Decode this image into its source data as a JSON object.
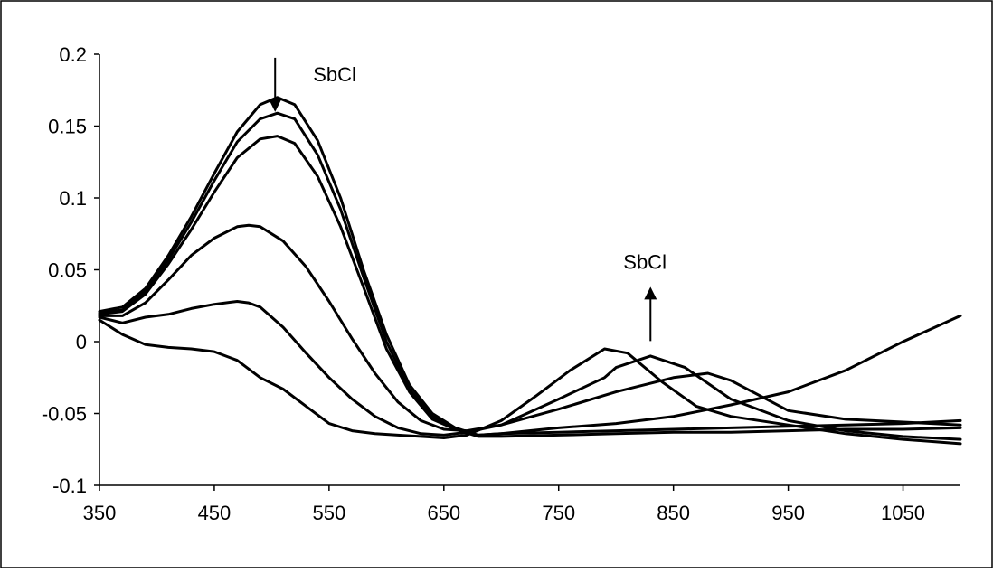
{
  "chart_data": {
    "type": "line",
    "title": "",
    "xlabel": "",
    "ylabel": "",
    "xlim": [
      350,
      1100
    ],
    "ylim": [
      -0.1,
      0.2
    ],
    "x_ticks": [
      350,
      450,
      550,
      650,
      750,
      850,
      950,
      1050
    ],
    "y_ticks": [
      0.2,
      0.15,
      0.1,
      0.05,
      0,
      -0.05,
      -0.1
    ],
    "x_tick_labels": [
      "350",
      "450",
      "550",
      "650",
      "750",
      "850",
      "950",
      "1050"
    ],
    "y_tick_labels": [
      "0.2",
      "0.15",
      "0.1",
      "0.05",
      "0",
      "-0.05",
      "-0.1"
    ],
    "grid": false,
    "legend": "none",
    "line_color": "#000000",
    "annotations": [
      {
        "text": "SbCl",
        "arrow": "down",
        "x": 503,
        "y": 0.19
      },
      {
        "text": "SbCl",
        "arrow": "up",
        "x": 830,
        "y": 0.035
      }
    ],
    "series": [
      {
        "x": [
          350,
          370,
          390,
          410,
          430,
          450,
          470,
          490,
          505,
          520,
          540,
          560,
          580,
          600,
          620,
          640,
          660,
          680,
          700,
          750,
          800,
          850,
          900,
          950,
          1000,
          1050,
          1100
        ],
        "y": [
          0.021,
          0.024,
          0.037,
          0.06,
          0.087,
          0.117,
          0.146,
          0.165,
          0.17,
          0.165,
          0.14,
          0.1,
          0.05,
          0.005,
          -0.03,
          -0.05,
          -0.06,
          -0.065,
          -0.064,
          -0.063,
          -0.062,
          -0.061,
          -0.06,
          -0.059,
          -0.058,
          -0.057,
          -0.055
        ]
      },
      {
        "x": [
          350,
          370,
          390,
          410,
          430,
          450,
          470,
          490,
          505,
          520,
          540,
          560,
          580,
          600,
          620,
          640,
          660,
          680,
          700,
          750,
          800,
          850,
          900,
          950,
          1000,
          1050,
          1100
        ],
        "y": [
          0.02,
          0.022,
          0.035,
          0.057,
          0.083,
          0.112,
          0.139,
          0.155,
          0.159,
          0.155,
          0.13,
          0.092,
          0.045,
          0.0,
          -0.033,
          -0.052,
          -0.061,
          -0.066,
          -0.066,
          -0.065,
          -0.064,
          -0.063,
          -0.063,
          -0.062,
          -0.061,
          -0.061,
          -0.06
        ]
      },
      {
        "x": [
          350,
          370,
          390,
          410,
          430,
          450,
          470,
          490,
          505,
          520,
          540,
          560,
          580,
          600,
          620,
          640,
          660,
          680,
          700,
          750,
          800,
          850,
          900,
          950,
          1000,
          1050,
          1100
        ],
        "y": [
          0.019,
          0.021,
          0.033,
          0.054,
          0.078,
          0.104,
          0.128,
          0.141,
          0.143,
          0.138,
          0.115,
          0.08,
          0.038,
          -0.005,
          -0.035,
          -0.054,
          -0.061,
          -0.065,
          -0.064,
          -0.06,
          -0.057,
          -0.052,
          -0.044,
          -0.035,
          -0.02,
          0.0,
          0.018
        ]
      },
      {
        "x": [
          350,
          370,
          390,
          410,
          430,
          450,
          470,
          480,
          490,
          510,
          530,
          550,
          570,
          590,
          610,
          630,
          650,
          670,
          700,
          750,
          800,
          850,
          880,
          900,
          950,
          1000,
          1050,
          1100
        ],
        "y": [
          0.018,
          0.018,
          0.027,
          0.043,
          0.06,
          0.072,
          0.08,
          0.081,
          0.08,
          0.07,
          0.052,
          0.028,
          0.002,
          -0.022,
          -0.042,
          -0.055,
          -0.061,
          -0.062,
          -0.058,
          -0.047,
          -0.035,
          -0.025,
          -0.022,
          -0.027,
          -0.048,
          -0.054,
          -0.056,
          -0.058
        ]
      },
      {
        "x": [
          350,
          370,
          390,
          410,
          430,
          450,
          470,
          480,
          490,
          510,
          530,
          550,
          570,
          590,
          610,
          630,
          650,
          670,
          700,
          750,
          790,
          800,
          830,
          860,
          900,
          950,
          1000,
          1050,
          1100
        ],
        "y": [
          0.017,
          0.013,
          0.017,
          0.019,
          0.023,
          0.026,
          0.028,
          0.027,
          0.024,
          0.01,
          -0.008,
          -0.025,
          -0.04,
          -0.052,
          -0.06,
          -0.064,
          -0.065,
          -0.063,
          -0.058,
          -0.04,
          -0.025,
          -0.018,
          -0.01,
          -0.018,
          -0.04,
          -0.055,
          -0.062,
          -0.066,
          -0.068
        ]
      },
      {
        "x": [
          350,
          370,
          390,
          410,
          430,
          450,
          470,
          490,
          510,
          530,
          550,
          570,
          590,
          610,
          630,
          650,
          670,
          700,
          730,
          760,
          790,
          810,
          840,
          870,
          900,
          950,
          1000,
          1050,
          1100
        ],
        "y": [
          0.015,
          0.005,
          -0.002,
          -0.004,
          -0.005,
          -0.007,
          -0.013,
          -0.025,
          -0.033,
          -0.045,
          -0.057,
          -0.062,
          -0.064,
          -0.065,
          -0.066,
          -0.067,
          -0.065,
          -0.055,
          -0.038,
          -0.02,
          -0.005,
          -0.008,
          -0.028,
          -0.045,
          -0.052,
          -0.058,
          -0.064,
          -0.068,
          -0.071
        ]
      }
    ]
  }
}
